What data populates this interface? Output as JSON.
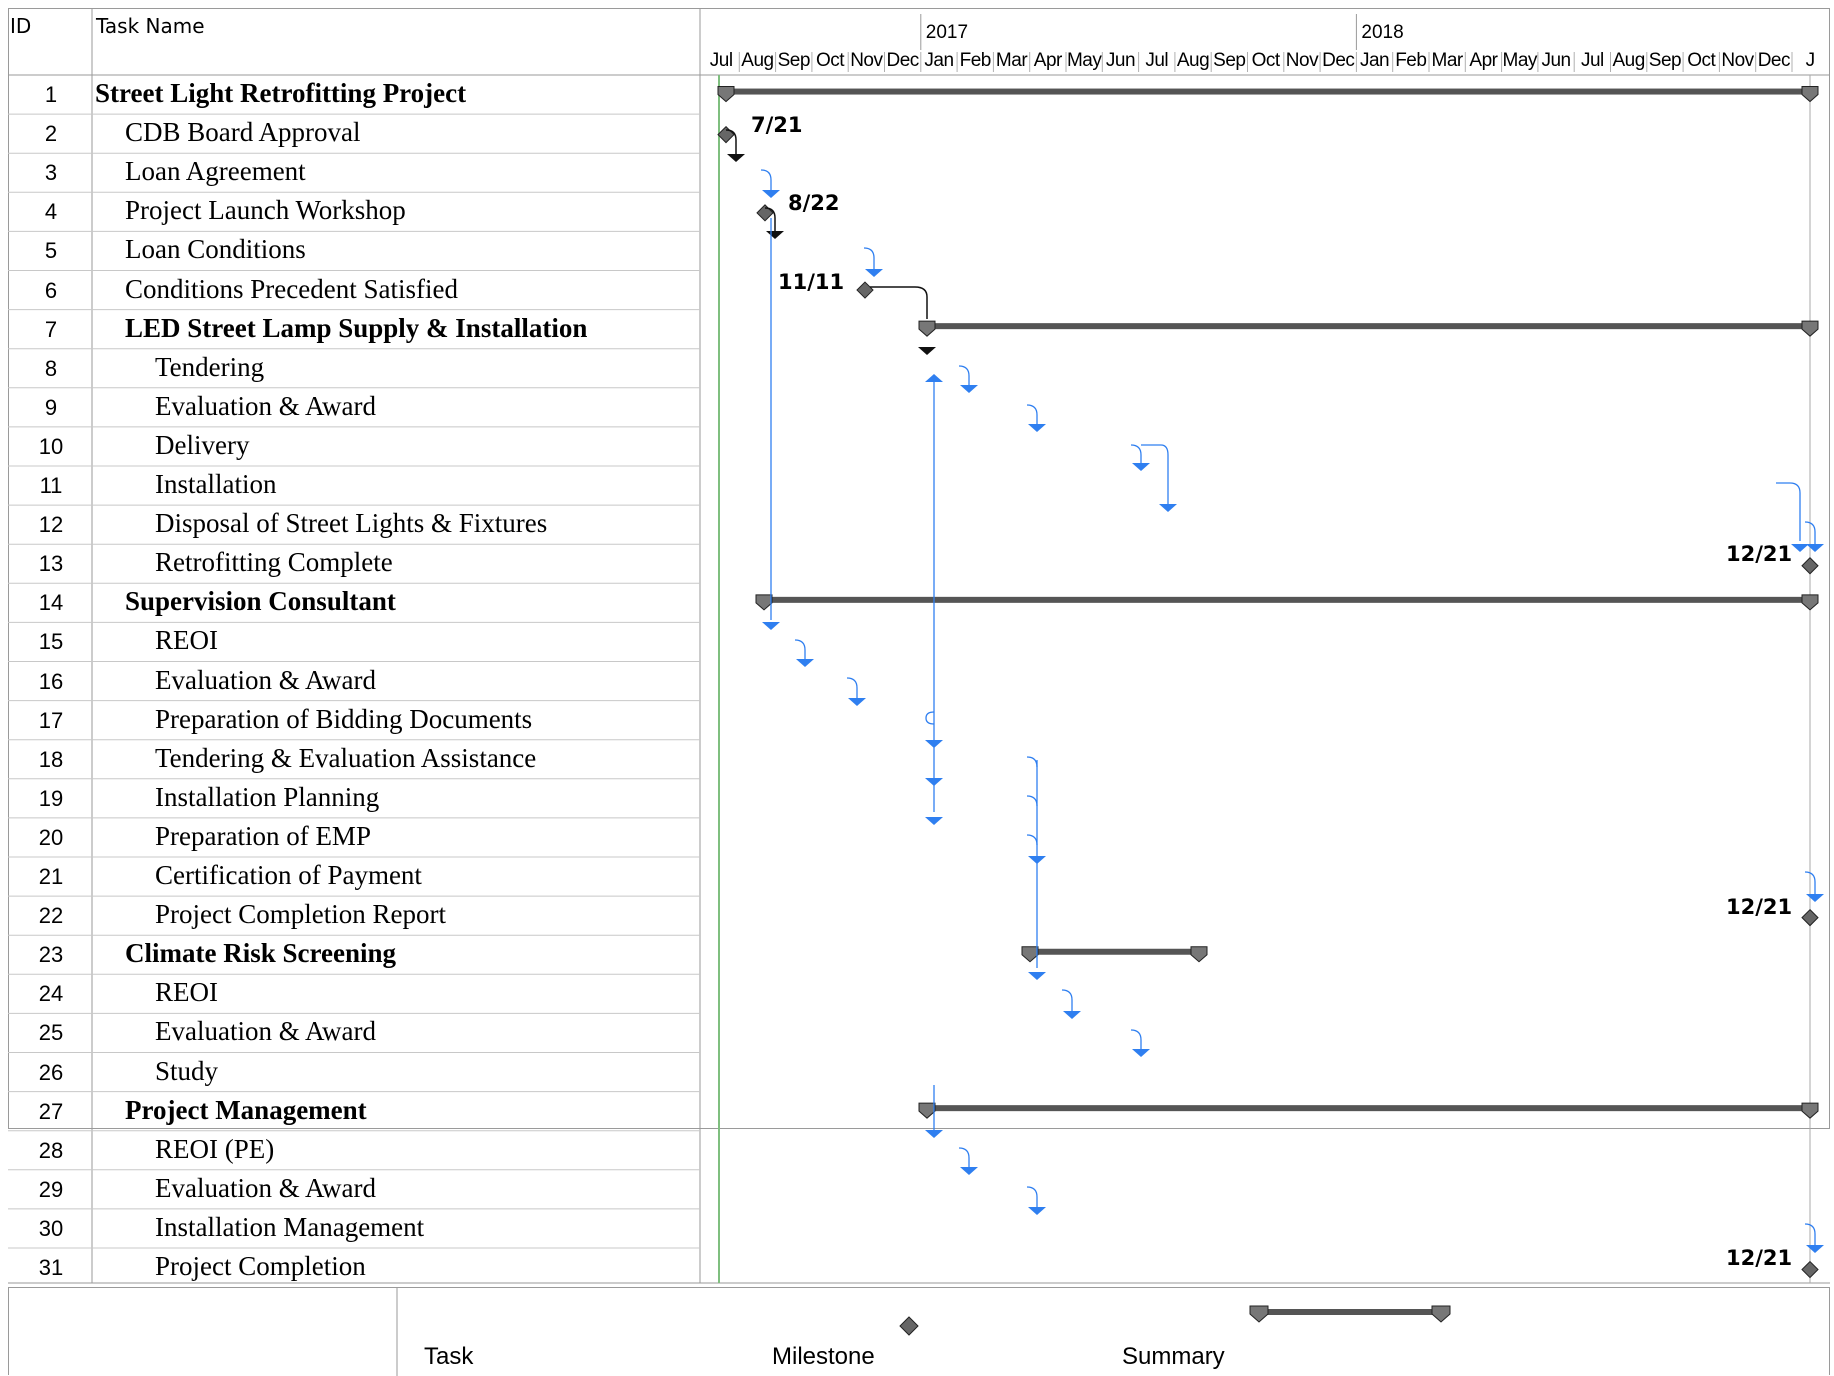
{
  "header": {
    "id_label": "ID",
    "name_label": "Task Name"
  },
  "timescale": {
    "years": [
      "2017",
      "2018"
    ],
    "months": [
      "Jul",
      "Aug",
      "Sep",
      "Oct",
      "Nov",
      "Dec",
      "Jan",
      "Feb",
      "Mar",
      "Apr",
      "May",
      "Jun",
      "Jul",
      "Aug",
      "Sep",
      "Oct",
      "Nov",
      "Dec",
      "Jan",
      "Feb",
      "Mar",
      "Apr",
      "May",
      "Jun",
      "Jul",
      "Aug",
      "Sep",
      "Oct",
      "Nov",
      "Dec",
      "J"
    ]
  },
  "tasks": [
    {
      "id": "1",
      "name": "Street Light Retrofitting Project",
      "level": 0,
      "summary": true
    },
    {
      "id": "2",
      "name": "CDB Board Approval",
      "level": 1
    },
    {
      "id": "3",
      "name": "Loan Agreement",
      "level": 1
    },
    {
      "id": "4",
      "name": "Project Launch Workshop",
      "level": 1
    },
    {
      "id": "5",
      "name": "Loan Conditions",
      "level": 1
    },
    {
      "id": "6",
      "name": "Conditions Precedent Satisfied",
      "level": 1
    },
    {
      "id": "7",
      "name": "LED Street Lamp Supply & Installation",
      "level": 1,
      "summary": true
    },
    {
      "id": "8",
      "name": "Tendering",
      "level": 2
    },
    {
      "id": "9",
      "name": "Evaluation & Award",
      "level": 2
    },
    {
      "id": "10",
      "name": "Delivery",
      "level": 2
    },
    {
      "id": "11",
      "name": "Installation",
      "level": 2
    },
    {
      "id": "12",
      "name": "Disposal of Street Lights & Fixtures",
      "level": 2
    },
    {
      "id": "13",
      "name": "Retrofitting Complete",
      "level": 2
    },
    {
      "id": "14",
      "name": "Supervision Consultant",
      "level": 1,
      "summary": true
    },
    {
      "id": "15",
      "name": "REOI",
      "level": 2
    },
    {
      "id": "16",
      "name": "Evaluation & Award",
      "level": 2
    },
    {
      "id": "17",
      "name": "Preparation of Bidding Documents",
      "level": 2
    },
    {
      "id": "18",
      "name": "Tendering & Evaluation Assistance",
      "level": 2
    },
    {
      "id": "19",
      "name": "Installation Planning",
      "level": 2
    },
    {
      "id": "20",
      "name": "Preparation of EMP",
      "level": 2
    },
    {
      "id": "21",
      "name": "Certification of Payment",
      "level": 2
    },
    {
      "id": "22",
      "name": "Project Completion Report",
      "level": 2
    },
    {
      "id": "23",
      "name": "Climate Risk Screening",
      "level": 1,
      "summary": true
    },
    {
      "id": "24",
      "name": "REOI",
      "level": 2
    },
    {
      "id": "25",
      "name": "Evaluation & Award",
      "level": 2
    },
    {
      "id": "26",
      "name": "Study",
      "level": 2
    },
    {
      "id": "27",
      "name": "Project Management",
      "level": 1,
      "summary": true
    },
    {
      "id": "28",
      "name": "REOI (PE)",
      "level": 2
    },
    {
      "id": "29",
      "name": "Evaluation & Award",
      "level": 2
    },
    {
      "id": "30",
      "name": "Installation Management",
      "level": 2
    },
    {
      "id": "31",
      "name": "Project Completion",
      "level": 2
    }
  ],
  "milestones": [
    {
      "row": 2,
      "label": "7/21"
    },
    {
      "row": 4,
      "label": "8/22"
    },
    {
      "row": 6,
      "label": "11/11"
    },
    {
      "row": 13,
      "label": "12/21"
    },
    {
      "row": 22,
      "label": "12/21"
    },
    {
      "row": 31,
      "label": "12/21"
    }
  ],
  "legend": {
    "task": "Task",
    "milestone": "Milestone",
    "summary": "Summary"
  },
  "colors": {
    "link": "#2f7ff0",
    "summary": "#555555",
    "milestone": "#666666",
    "today": "#7fbf7f",
    "grid": "#c8c8c8"
  }
}
